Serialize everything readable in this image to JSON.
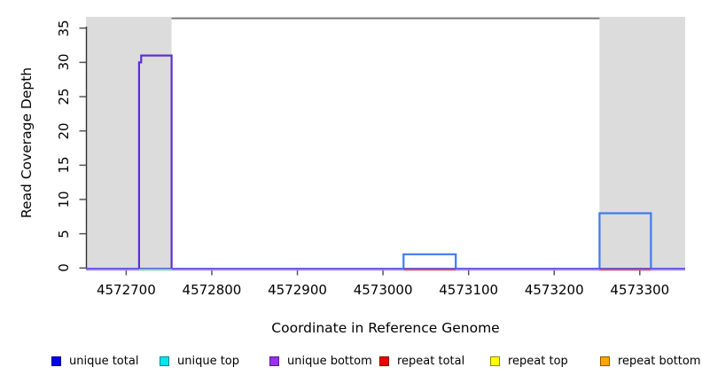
{
  "figure": {
    "background": "#ffffff",
    "text_color": "#000000",
    "frame_color": "#777777",
    "axis_color": "#333333",
    "tick_color": "#555555"
  },
  "chart_data": {
    "type": "line",
    "title": "",
    "xlabel": "Coordinate in Reference Genome",
    "ylabel": "Read Coverage Depth",
    "xlim": [
      4572653,
      4573353
    ],
    "ylim": [
      0,
      36.5
    ],
    "x_ticks": [
      4572700,
      4572800,
      4572900,
      4573000,
      4573100,
      4573200,
      4573300
    ],
    "y_ticks": [
      0,
      5,
      10,
      15,
      20,
      25,
      30,
      35
    ],
    "grid": false,
    "legend_position": "bottom",
    "shaded_regions": [
      {
        "name": "left-flank-shading",
        "x1": 4572653,
        "x2": 4572753,
        "color": "#dcdcdc"
      },
      {
        "name": "right-flank-shading",
        "x1": 4573253,
        "x2": 4573353,
        "color": "#dcdcdc"
      }
    ],
    "series": [
      {
        "name": "unique total",
        "legend_color": "#0000ee",
        "legend_border": "#00008b",
        "points": [
          [
            4572653,
            0
          ],
          [
            4572715,
            0
          ],
          [
            4572715,
            30
          ],
          [
            4572717.5,
            30
          ],
          [
            4572717.5,
            31
          ],
          [
            4572753,
            31
          ],
          [
            4572753,
            0
          ],
          [
            4573024,
            0
          ],
          [
            4573024,
            2
          ],
          [
            4573085,
            2
          ],
          [
            4573085,
            0
          ],
          [
            4573253,
            0
          ],
          [
            4573253,
            8
          ],
          [
            4573313,
            8
          ],
          [
            4573313,
            0
          ],
          [
            4573353,
            0
          ]
        ]
      },
      {
        "name": "unique top",
        "legend_color": "#00e5ee",
        "legend_border": "#00868b",
        "points": [
          [
            4572653,
            0
          ],
          [
            4573353,
            0
          ]
        ]
      },
      {
        "name": "unique bottom",
        "legend_color": "#9b30f0",
        "legend_border": "#551a8b",
        "points": [
          [
            4572653,
            0
          ],
          [
            4572715,
            0
          ],
          [
            4572715,
            30
          ],
          [
            4572717.5,
            30
          ],
          [
            4572717.5,
            31
          ],
          [
            4572753,
            31
          ],
          [
            4572753,
            0
          ],
          [
            4573353,
            0
          ]
        ]
      },
      {
        "name": "repeat total",
        "legend_color": "#ee0000",
        "legend_border": "#8b0000",
        "points": [
          [
            4572653,
            0
          ],
          [
            4573353,
            0
          ]
        ]
      },
      {
        "name": "repeat top",
        "legend_color": "#ffff00",
        "legend_border": "#8b8b00",
        "points": [
          [
            4572653,
            0
          ],
          [
            4573353,
            0
          ]
        ]
      },
      {
        "name": "repeat bottom",
        "legend_color": "#ffa500",
        "legend_border": "#8b5a00",
        "points": [
          [
            4572653,
            0
          ],
          [
            4573353,
            0
          ]
        ]
      }
    ],
    "visible_strokes": [
      {
        "name": "baseline-blue",
        "color": "#4545e8",
        "width": 1.6,
        "dy": 0.6,
        "points": [
          [
            4572653,
            0
          ],
          [
            4573353,
            0
          ]
        ]
      },
      {
        "name": "baseline-light-purple",
        "color": "#ad8cf0",
        "width": 1.5,
        "dy": 2.2,
        "points": [
          [
            4572653,
            0
          ],
          [
            4573353,
            0
          ]
        ]
      },
      {
        "name": "overlap-green-segment",
        "color": "#8fdc8f",
        "width": 1.8,
        "dy": 1.9,
        "points": [
          [
            4572715,
            0
          ],
          [
            4572753,
            0
          ]
        ]
      },
      {
        "name": "repeat-red-segment-1",
        "color": "#e2524c",
        "width": 1.8,
        "dy": 1.9,
        "points": [
          [
            4573024,
            0
          ],
          [
            4573085,
            0
          ]
        ]
      },
      {
        "name": "repeat-red-segment-2",
        "color": "#e2524c",
        "width": 1.8,
        "dy": 1.9,
        "points": [
          [
            4573253,
            0
          ],
          [
            4573313,
            0
          ]
        ]
      },
      {
        "name": "unique-total-peak-mid",
        "color": "#3d7cf0",
        "width": 2.2,
        "dy": 0,
        "points": [
          [
            4573024,
            0
          ],
          [
            4573024,
            2
          ],
          [
            4573085,
            2
          ],
          [
            4573085,
            0
          ]
        ]
      },
      {
        "name": "unique-total-peak-right",
        "color": "#3d7cf0",
        "width": 2.2,
        "dy": 0,
        "points": [
          [
            4573253,
            0
          ],
          [
            4573253,
            8
          ],
          [
            4573313,
            8
          ],
          [
            4573313,
            0
          ]
        ]
      },
      {
        "name": "unique-bottom-peak-left",
        "color": "#5b2edc",
        "width": 2.2,
        "dy": 0,
        "points": [
          [
            4572715,
            0
          ],
          [
            4572715,
            30
          ],
          [
            4572717.5,
            30
          ],
          [
            4572717.5,
            31
          ],
          [
            4572753,
            31
          ],
          [
            4572753,
            0
          ]
        ]
      }
    ]
  },
  "legend": {
    "items": [
      {
        "label": "unique total",
        "fill": "#0000ee",
        "border": "#00008b"
      },
      {
        "label": "unique top",
        "fill": "#00e5ee",
        "border": "#00868b"
      },
      {
        "label": "unique bottom",
        "fill": "#9b30f0",
        "border": "#551a8b"
      },
      {
        "label": "repeat total",
        "fill": "#ee0000",
        "border": "#8b0000"
      },
      {
        "label": "repeat top",
        "fill": "#ffff00",
        "border": "#8b8b00"
      },
      {
        "label": "repeat bottom",
        "fill": "#ffa500",
        "border": "#8b5a00"
      }
    ]
  }
}
